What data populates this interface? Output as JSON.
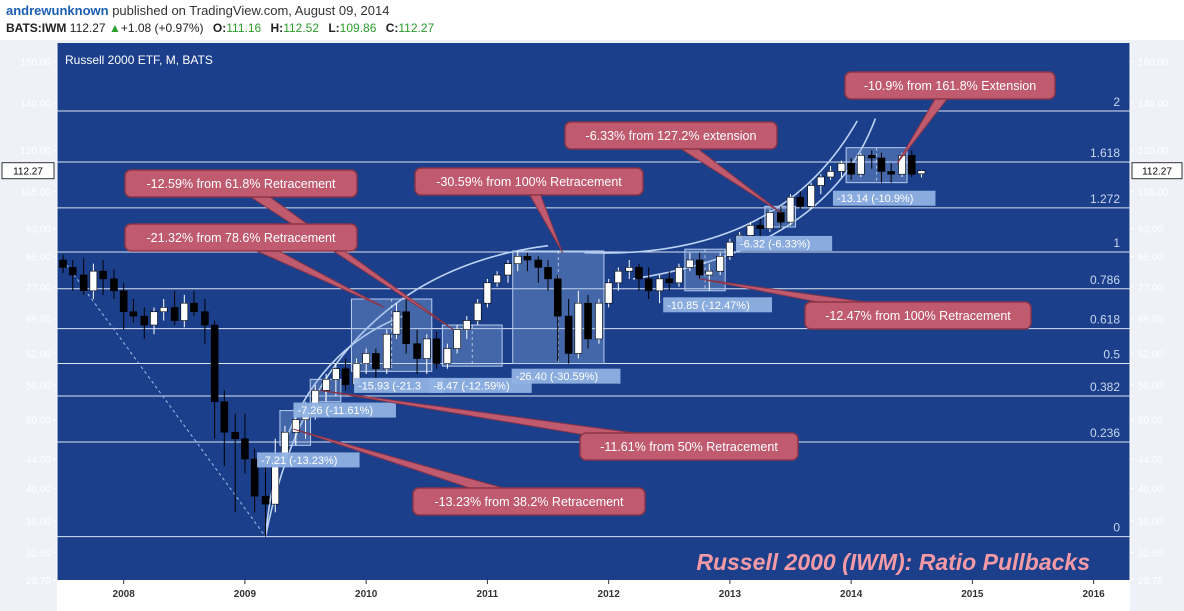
{
  "header": {
    "user": "andrewunknown",
    "published": "published on TradingView.com, August 09, 2014",
    "symbol": "BATS:IWM",
    "last": "112.27",
    "change": "+1.08 (+0.97%)",
    "o_label": "O:",
    "o": "111.16",
    "h_label": "H:",
    "h": "112.52",
    "l_label": "L:",
    "l": "109.86",
    "c_label": "C:",
    "c": "112.27"
  },
  "chart_data": {
    "type": "candlestick",
    "title": "Russell 2000 ETF, M, BATS",
    "overlay_title": "Russell 2000 (IWM): Ratio Pullbacks",
    "price_axis_ticks": [
      "160.00",
      "140.00",
      "120.00",
      "105.00",
      "93.00",
      "85.00",
      "77.00",
      "69.50",
      "62.00",
      "56.00",
      "50.00",
      "44.00",
      "40.00",
      "36.00",
      "32.50",
      "29.70"
    ],
    "price_axis_values": [
      160,
      140,
      120,
      105,
      93,
      85,
      77,
      69.5,
      62,
      56,
      50,
      44,
      40,
      36,
      32.5,
      29.7
    ],
    "last_price_label": "112.27",
    "x_ticks": [
      {
        "label": "2008",
        "t": 2008.0
      },
      {
        "label": "2009",
        "t": 2009.0
      },
      {
        "label": "2010",
        "t": 2010.0
      },
      {
        "label": "2011",
        "t": 2011.0
      },
      {
        "label": "2012",
        "t": 2012.0
      },
      {
        "label": "2013",
        "t": 2013.0
      },
      {
        "label": "2014",
        "t": 2014.0
      },
      {
        "label": "2015",
        "t": 2015.0
      },
      {
        "label": "2016",
        "t": 2016.0
      }
    ],
    "y_scale": "log",
    "y_range": [
      29.7,
      170
    ],
    "x_range": [
      2007.45,
      2016.3
    ],
    "colors": {
      "up": "#ffffff",
      "down": "#000000",
      "background": "#1b3f8b",
      "gridline": "#dbe4f3",
      "callout": "#c05a6e",
      "label_box": "#8fb1e3",
      "arc": "#bcd3f4"
    },
    "fib_levels": [
      {
        "label": "2",
        "price": 136.3
      },
      {
        "label": "1.618",
        "price": 115.5
      },
      {
        "label": "1.272",
        "price": 99.5
      },
      {
        "label": "1",
        "price": 86.2
      },
      {
        "label": "0.786",
        "price": 76.5
      },
      {
        "label": "0.618",
        "price": 67.2
      },
      {
        "label": "0.5",
        "price": 60.0
      },
      {
        "label": "0.382",
        "price": 54.0
      },
      {
        "label": "0.236",
        "price": 46.5
      },
      {
        "label": "0",
        "price": 34.2
      }
    ],
    "candles": [
      {
        "t": 2007.5,
        "o": 84,
        "h": 85.5,
        "l": 80.5,
        "c": 82
      },
      {
        "t": 2007.58,
        "o": 82,
        "h": 84,
        "l": 76,
        "c": 80
      },
      {
        "t": 2007.67,
        "o": 80,
        "h": 84.5,
        "l": 75,
        "c": 76
      },
      {
        "t": 2007.75,
        "o": 76,
        "h": 83,
        "l": 74,
        "c": 81
      },
      {
        "t": 2007.83,
        "o": 81,
        "h": 84,
        "l": 75,
        "c": 79
      },
      {
        "t": 2007.92,
        "o": 79,
        "h": 81.5,
        "l": 74,
        "c": 76
      },
      {
        "t": 2008.0,
        "o": 76,
        "h": 78,
        "l": 67,
        "c": 71
      },
      {
        "t": 2008.08,
        "o": 71,
        "h": 74,
        "l": 68.5,
        "c": 70
      },
      {
        "t": 2008.17,
        "o": 70,
        "h": 72,
        "l": 65,
        "c": 68
      },
      {
        "t": 2008.25,
        "o": 68,
        "h": 72,
        "l": 66,
        "c": 71
      },
      {
        "t": 2008.33,
        "o": 71,
        "h": 74,
        "l": 69,
        "c": 72
      },
      {
        "t": 2008.42,
        "o": 72,
        "h": 76,
        "l": 68,
        "c": 69
      },
      {
        "t": 2008.5,
        "o": 69,
        "h": 75,
        "l": 67.5,
        "c": 73
      },
      {
        "t": 2008.58,
        "o": 73,
        "h": 76,
        "l": 70,
        "c": 71
      },
      {
        "t": 2008.67,
        "o": 71,
        "h": 74,
        "l": 64,
        "c": 68
      },
      {
        "t": 2008.75,
        "o": 68,
        "h": 69,
        "l": 47,
        "c": 53
      },
      {
        "t": 2008.83,
        "o": 53,
        "h": 55,
        "l": 43,
        "c": 48
      },
      {
        "t": 2008.92,
        "o": 48,
        "h": 51,
        "l": 37,
        "c": 47
      },
      {
        "t": 2009.0,
        "o": 47,
        "h": 51,
        "l": 42,
        "c": 44
      },
      {
        "t": 2009.08,
        "o": 44,
        "h": 45.5,
        "l": 37,
        "c": 39
      },
      {
        "t": 2009.17,
        "o": 39,
        "h": 43,
        "l": 34.2,
        "c": 38
      },
      {
        "t": 2009.25,
        "o": 38,
        "h": 47,
        "l": 37,
        "c": 44
      },
      {
        "t": 2009.33,
        "o": 44,
        "h": 49,
        "l": 43,
        "c": 48
      },
      {
        "t": 2009.42,
        "o": 48,
        "h": 51,
        "l": 46,
        "c": 50
      },
      {
        "t": 2009.5,
        "o": 50,
        "h": 53,
        "l": 47,
        "c": 52
      },
      {
        "t": 2009.58,
        "o": 52,
        "h": 56,
        "l": 50,
        "c": 55
      },
      {
        "t": 2009.67,
        "o": 55,
        "h": 58,
        "l": 53,
        "c": 57
      },
      {
        "t": 2009.75,
        "o": 57,
        "h": 60,
        "l": 54,
        "c": 59
      },
      {
        "t": 2009.83,
        "o": 59,
        "h": 61,
        "l": 55,
        "c": 56
      },
      {
        "t": 2009.92,
        "o": 56,
        "h": 61,
        "l": 55,
        "c": 60
      },
      {
        "t": 2010.0,
        "o": 60,
        "h": 63,
        "l": 58,
        "c": 62
      },
      {
        "t": 2010.08,
        "o": 62,
        "h": 63,
        "l": 57,
        "c": 59
      },
      {
        "t": 2010.17,
        "o": 59,
        "h": 67,
        "l": 58,
        "c": 66
      },
      {
        "t": 2010.25,
        "o": 66,
        "h": 73,
        "l": 65,
        "c": 71
      },
      {
        "t": 2010.33,
        "o": 71,
        "h": 74,
        "l": 62,
        "c": 64
      },
      {
        "t": 2010.42,
        "o": 64,
        "h": 67,
        "l": 58,
        "c": 61
      },
      {
        "t": 2010.5,
        "o": 61,
        "h": 66,
        "l": 58,
        "c": 65
      },
      {
        "t": 2010.58,
        "o": 65,
        "h": 66.5,
        "l": 59,
        "c": 60
      },
      {
        "t": 2010.67,
        "o": 60,
        "h": 64,
        "l": 59,
        "c": 63
      },
      {
        "t": 2010.75,
        "o": 63,
        "h": 68,
        "l": 62,
        "c": 67
      },
      {
        "t": 2010.83,
        "o": 67,
        "h": 70,
        "l": 65,
        "c": 69
      },
      {
        "t": 2010.92,
        "o": 69,
        "h": 74,
        "l": 68,
        "c": 73
      },
      {
        "t": 2011.0,
        "o": 73,
        "h": 79,
        "l": 72,
        "c": 78
      },
      {
        "t": 2011.08,
        "o": 78,
        "h": 81,
        "l": 77,
        "c": 80
      },
      {
        "t": 2011.17,
        "o": 80,
        "h": 84,
        "l": 78,
        "c": 83
      },
      {
        "t": 2011.25,
        "o": 83,
        "h": 86.5,
        "l": 81,
        "c": 85
      },
      {
        "t": 2011.33,
        "o": 85,
        "h": 86,
        "l": 81,
        "c": 84
      },
      {
        "t": 2011.42,
        "o": 84,
        "h": 85,
        "l": 78,
        "c": 82
      },
      {
        "t": 2011.5,
        "o": 82,
        "h": 84,
        "l": 76,
        "c": 79
      },
      {
        "t": 2011.58,
        "o": 79,
        "h": 80,
        "l": 60.5,
        "c": 70
      },
      {
        "t": 2011.67,
        "o": 70,
        "h": 74,
        "l": 60,
        "c": 62
      },
      {
        "t": 2011.75,
        "o": 62,
        "h": 76,
        "l": 61,
        "c": 73
      },
      {
        "t": 2011.83,
        "o": 73,
        "h": 75,
        "l": 63,
        "c": 65
      },
      {
        "t": 2011.92,
        "o": 65,
        "h": 74,
        "l": 64,
        "c": 73
      },
      {
        "t": 2012.0,
        "o": 73,
        "h": 79,
        "l": 72,
        "c": 78
      },
      {
        "t": 2012.08,
        "o": 78,
        "h": 82,
        "l": 76,
        "c": 81
      },
      {
        "t": 2012.17,
        "o": 81,
        "h": 84,
        "l": 79,
        "c": 82
      },
      {
        "t": 2012.25,
        "o": 82,
        "h": 83,
        "l": 76,
        "c": 79
      },
      {
        "t": 2012.33,
        "o": 79,
        "h": 82,
        "l": 74,
        "c": 76
      },
      {
        "t": 2012.42,
        "o": 76,
        "h": 80,
        "l": 73,
        "c": 79
      },
      {
        "t": 2012.5,
        "o": 79,
        "h": 81,
        "l": 76,
        "c": 78
      },
      {
        "t": 2012.58,
        "o": 78,
        "h": 83,
        "l": 77,
        "c": 82
      },
      {
        "t": 2012.67,
        "o": 82,
        "h": 86,
        "l": 81,
        "c": 84
      },
      {
        "t": 2012.75,
        "o": 84,
        "h": 86,
        "l": 79,
        "c": 80
      },
      {
        "t": 2012.83,
        "o": 80,
        "h": 83,
        "l": 76,
        "c": 81
      },
      {
        "t": 2012.92,
        "o": 81,
        "h": 86,
        "l": 80,
        "c": 85
      },
      {
        "t": 2013.0,
        "o": 85,
        "h": 90,
        "l": 84,
        "c": 89
      },
      {
        "t": 2013.08,
        "o": 89,
        "h": 92,
        "l": 88,
        "c": 91
      },
      {
        "t": 2013.17,
        "o": 91,
        "h": 95,
        "l": 90,
        "c": 94
      },
      {
        "t": 2013.25,
        "o": 94,
        "h": 96,
        "l": 90,
        "c": 93
      },
      {
        "t": 2013.33,
        "o": 93,
        "h": 99,
        "l": 92,
        "c": 98
      },
      {
        "t": 2013.42,
        "o": 98,
        "h": 100,
        "l": 93,
        "c": 95
      },
      {
        "t": 2013.5,
        "o": 95,
        "h": 104,
        "l": 94,
        "c": 103
      },
      {
        "t": 2013.58,
        "o": 103,
        "h": 105,
        "l": 99,
        "c": 100
      },
      {
        "t": 2013.67,
        "o": 100,
        "h": 108,
        "l": 99,
        "c": 107
      },
      {
        "t": 2013.75,
        "o": 107,
        "h": 111,
        "l": 104,
        "c": 110
      },
      {
        "t": 2013.83,
        "o": 110,
        "h": 114,
        "l": 109,
        "c": 112
      },
      {
        "t": 2013.92,
        "o": 112,
        "h": 116,
        "l": 110,
        "c": 115
      },
      {
        "t": 2014.0,
        "o": 115,
        "h": 117,
        "l": 109,
        "c": 111
      },
      {
        "t": 2014.08,
        "o": 111,
        "h": 119,
        "l": 110,
        "c": 118
      },
      {
        "t": 2014.17,
        "o": 118,
        "h": 120,
        "l": 113,
        "c": 117
      },
      {
        "t": 2014.25,
        "o": 117,
        "h": 119,
        "l": 108,
        "c": 112
      },
      {
        "t": 2014.33,
        "o": 112,
        "h": 115,
        "l": 108,
        "c": 111
      },
      {
        "t": 2014.42,
        "o": 111,
        "h": 119,
        "l": 110,
        "c": 118
      },
      {
        "t": 2014.5,
        "o": 118,
        "h": 120,
        "l": 110,
        "c": 111
      },
      {
        "t": 2014.58,
        "o": 111.16,
        "h": 112.52,
        "l": 109.86,
        "c": 112.27
      }
    ],
    "pullback_boxes": [
      {
        "t0": 2009.33,
        "t1": 2009.5,
        "high": 51.5,
        "low": 46,
        "label": "-7.21 (-13.23%)",
        "label_t": 2009.1,
        "label_price": 43.8
      },
      {
        "t0": 2009.58,
        "t1": 2009.75,
        "high": 57,
        "low": 53,
        "label": "-7.26 (-11.61%)",
        "label_t": 2009.4,
        "label_price": 51.5
      },
      {
        "t0": 2009.92,
        "t1": 2010.5,
        "high": 74,
        "low": 58.5,
        "label": "-15.93 (-21.3",
        "label_t": 2009.9,
        "label_price": 55.8
      },
      {
        "t0": 2010.67,
        "t1": 2011.08,
        "high": 68,
        "low": 59.5,
        "label": "-8.47 (-12.59%)",
        "label_t": 2010.52,
        "label_price": 55.8
      },
      {
        "t0": 2011.25,
        "t1": 2011.92,
        "high": 86.5,
        "low": 60,
        "label": "-26.40 (-30.59%)",
        "label_t": 2011.2,
        "label_price": 57.5
      },
      {
        "t0": 2012.67,
        "t1": 2012.92,
        "high": 87,
        "low": 76,
        "label": "-10.85 (-12.47%)",
        "label_t": 2012.45,
        "label_price": 72.5
      },
      {
        "t0": 2013.33,
        "t1": 2013.5,
        "high": 100,
        "low": 93.5,
        "label": "-6.32 (-6.33%)",
        "label_t": 2013.05,
        "label_price": 88.5
      },
      {
        "t0": 2014.0,
        "t1": 2014.42,
        "high": 121,
        "low": 108,
        "label": "-13.14 (-10.9%)",
        "label_t": 2013.85,
        "label_price": 102.5
      }
    ],
    "callouts": [
      {
        "text": "-10.9% from 161.8% Extension",
        "t": 2014.38,
        "price": 115
      },
      {
        "text": "-6.33% from 127.2% extension",
        "t": 2013.42,
        "price": 98
      },
      {
        "text": "-12.59% from 61.8% Retracement",
        "t": 2010.72,
        "price": 67
      },
      {
        "text": "-30.59% from 100% Retracement",
        "t": 2011.62,
        "price": 86
      },
      {
        "text": "-21.32% from 78.6% Retracement",
        "t": 2010.15,
        "price": 72
      },
      {
        "text": "-12.47% from 100% Retracement",
        "t": 2012.75,
        "price": 79
      },
      {
        "text": "-11.61% from 50% Retracement",
        "t": 2009.62,
        "price": 55
      },
      {
        "text": "-13.23% from 38.2% Retracement",
        "t": 2009.4,
        "price": 48.5
      }
    ]
  }
}
